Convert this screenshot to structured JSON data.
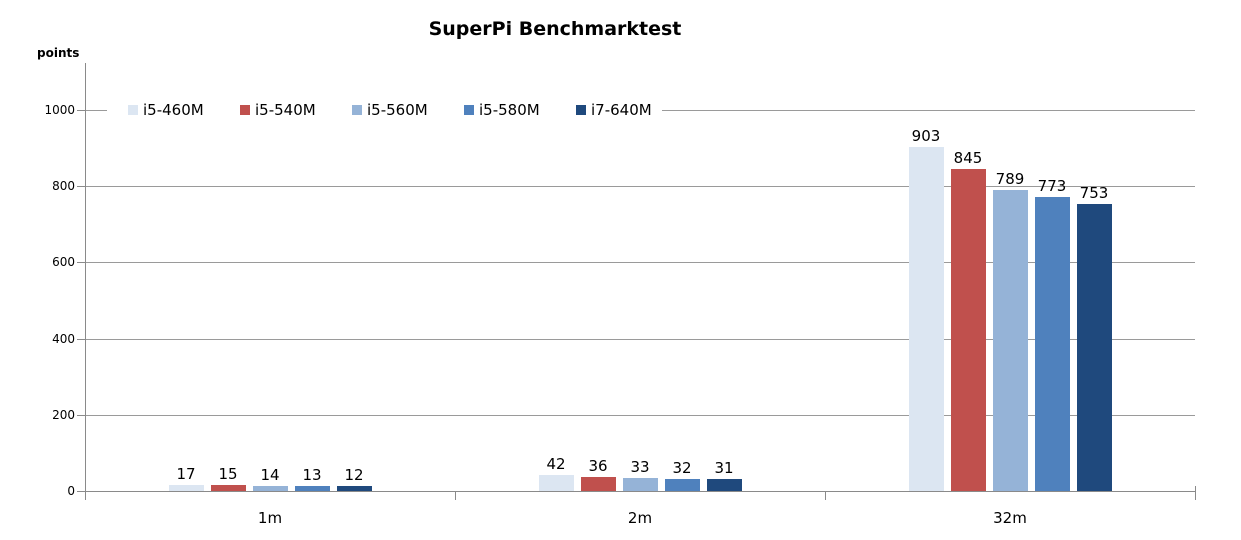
{
  "title": "SuperPi Benchmarktest",
  "axis": {
    "y_title": "points",
    "y_ticks": [
      0,
      200,
      400,
      600,
      800,
      1000
    ],
    "x_categories": [
      "1m",
      "2m",
      "32m"
    ]
  },
  "legend": {
    "items": [
      {
        "label": "i5-460M",
        "color": "#dce6f2"
      },
      {
        "label": "i5-540M",
        "color": "#c0504d"
      },
      {
        "label": "i5-560M",
        "color": "#95b3d7"
      },
      {
        "label": "i5-580M",
        "color": "#4f81bd"
      },
      {
        "label": "i7-640M",
        "color": "#1f497d"
      }
    ]
  },
  "chart_data": {
    "type": "bar",
    "title": "SuperPi Benchmarktest",
    "xlabel": "",
    "ylabel": "points",
    "ylim": [
      0,
      1000
    ],
    "y_ticks": [
      0,
      200,
      400,
      600,
      800,
      1000
    ],
    "grid": true,
    "legend_position": "top-left-inside",
    "data_labels": true,
    "categories": [
      "1m",
      "2m",
      "32m"
    ],
    "series": [
      {
        "name": "i5-460M",
        "color": "#dce6f2",
        "values": [
          17,
          42,
          903
        ]
      },
      {
        "name": "i5-540M",
        "color": "#c0504d",
        "values": [
          15,
          36,
          845
        ]
      },
      {
        "name": "i5-560M",
        "color": "#95b3d7",
        "values": [
          14,
          33,
          789
        ]
      },
      {
        "name": "i5-580M",
        "color": "#4f81bd",
        "values": [
          13,
          32,
          773
        ]
      },
      {
        "name": "i7-640M",
        "color": "#1f497d",
        "values": [
          12,
          31,
          753
        ]
      }
    ]
  },
  "colors": {
    "background": "#ffffff",
    "gridline": "#9a9a9a",
    "axis": "#8a8a8a",
    "text": "#000000"
  }
}
